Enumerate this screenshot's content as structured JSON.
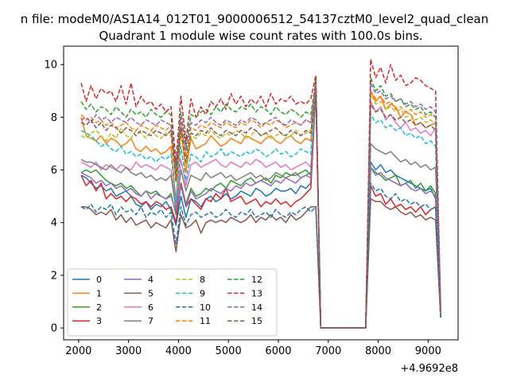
{
  "chart_data": {
    "type": "line",
    "suptitle": "n file: modeM0/AS1A14_012T01_9000006512_54137cztM0_level2_quad_clean",
    "title": "Quadrant 1 module wise count rates with 100.0s bins.",
    "xlabel": "",
    "ylabel": "",
    "x_offset_label": "+4.9692e8",
    "xlim": [
      1700,
      9600
    ],
    "ylim": [
      -0.45,
      10.7
    ],
    "xticks": [
      2000,
      3000,
      4000,
      5000,
      6000,
      7000,
      8000,
      9000
    ],
    "yticks": [
      0,
      2,
      4,
      6,
      8,
      10
    ],
    "x_start": 2050,
    "x_step": 100,
    "gap_start_index": 48,
    "gap_end_index": 57,
    "legend": {
      "placement": "lower-left",
      "columns": 4
    },
    "series": [
      {
        "name": "0",
        "color": "#1f77b4",
        "style": "solid",
        "pre": [
          5.8,
          5.7,
          5.5,
          5.3,
          5.4,
          5.2,
          5.3,
          5.0,
          5.1,
          5.2,
          5.0,
          4.7,
          4.6,
          4.8,
          4.5,
          4.7,
          4.6,
          4.8,
          4.5,
          3.9,
          5.0,
          4.2,
          4.9,
          4.8,
          4.6,
          4.9,
          5.0,
          4.8,
          4.9,
          5.1,
          4.9,
          5.0,
          5.2,
          5.1,
          5.0,
          5.3,
          5.2,
          5.0,
          5.1,
          5.3,
          5.2,
          5.2,
          5.3,
          5.1,
          5.4,
          5.3,
          5.5,
          9.3
        ],
        "post": [
          6.3,
          6.0,
          6.2,
          5.9,
          6.0,
          5.8,
          5.7,
          5.6,
          5.5,
          5.4,
          5.3,
          5.2,
          5.3,
          4.9,
          0.4
        ]
      },
      {
        "name": "1",
        "color": "#ff7f0e",
        "style": "solid",
        "pre": [
          8.0,
          7.3,
          7.2,
          7.1,
          7.3,
          7.0,
          7.2,
          7.1,
          6.9,
          7.0,
          7.2,
          6.8,
          6.7,
          6.9,
          6.7,
          6.8,
          6.6,
          6.7,
          6.9,
          4.8,
          7.5,
          5.9,
          7.2,
          6.8,
          6.9,
          7.0,
          7.3,
          7.1,
          6.9,
          7.0,
          7.2,
          7.1,
          7.0,
          7.3,
          7.2,
          7.1,
          7.0,
          7.2,
          7.3,
          7.1,
          7.0,
          7.2,
          7.3,
          7.1,
          7.0,
          7.2,
          7.1,
          9.5
        ],
        "post": [
          9.0,
          8.6,
          8.8,
          8.3,
          8.5,
          8.4,
          8.0,
          8.2,
          8.1,
          7.7,
          7.8,
          7.6,
          7.7,
          7.8,
          0.5
        ]
      },
      {
        "name": "2",
        "color": "#2ca02c",
        "style": "solid",
        "pre": [
          5.9,
          6.0,
          5.9,
          6.0,
          5.8,
          5.6,
          5.5,
          5.4,
          5.5,
          5.3,
          5.4,
          5.2,
          5.0,
          5.2,
          5.1,
          5.2,
          5.0,
          4.9,
          5.1,
          4.3,
          5.5,
          4.7,
          5.3,
          5.0,
          5.1,
          5.3,
          5.2,
          5.4,
          5.5,
          5.3,
          5.6,
          5.5,
          5.4,
          5.6,
          5.7,
          5.5,
          5.6,
          5.7,
          5.5,
          5.8,
          5.7,
          5.9,
          5.8,
          5.8,
          5.9,
          6.0,
          5.8,
          9.4
        ],
        "post": [
          6.1,
          5.9,
          5.8,
          5.6,
          5.7,
          5.8,
          5.4,
          5.5,
          5.6,
          5.3,
          5.5,
          5.2,
          5.4,
          5.1,
          0.5
        ]
      },
      {
        "name": "3",
        "color": "#d62728",
        "style": "solid",
        "pre": [
          5.8,
          5.4,
          5.6,
          5.2,
          5.5,
          4.9,
          5.1,
          4.9,
          5.0,
          4.8,
          5.0,
          4.9,
          4.7,
          4.8,
          4.6,
          4.8,
          4.7,
          4.5,
          4.6,
          4.0,
          5.5,
          4.6,
          4.9,
          4.7,
          4.5,
          4.9,
          4.8,
          5.1,
          4.9,
          5.3,
          4.8,
          4.9,
          5.0,
          4.7,
          4.8,
          4.9,
          4.6,
          4.8,
          4.7,
          4.9,
          4.7,
          4.8,
          4.6,
          4.8,
          4.9,
          5.1,
          5.3,
          9.0
        ],
        "post": [
          5.4,
          5.0,
          5.1,
          4.7,
          4.9,
          4.6,
          4.7,
          4.5,
          4.6,
          4.4,
          4.6,
          4.3,
          4.5,
          4.6,
          0.5
        ]
      },
      {
        "name": "4",
        "color": "#9467bd",
        "style": "solid",
        "pre": [
          5.9,
          5.8,
          5.7,
          5.5,
          5.6,
          5.4,
          5.5,
          5.3,
          5.4,
          5.2,
          5.3,
          5.1,
          5.0,
          5.2,
          4.9,
          5.1,
          5.0,
          4.9,
          5.0,
          4.4,
          5.4,
          4.6,
          5.2,
          4.9,
          5.0,
          5.1,
          5.3,
          5.2,
          5.1,
          5.3,
          5.2,
          5.4,
          5.3,
          5.5,
          5.4,
          5.5,
          5.6,
          5.5,
          5.4,
          5.6,
          5.5,
          5.7,
          5.6,
          5.5,
          5.7,
          5.8,
          5.7,
          9.4
        ],
        "post": [
          6.1,
          5.8,
          5.9,
          5.7,
          5.6,
          5.5,
          5.4,
          5.5,
          5.3,
          5.2,
          5.3,
          5.1,
          5.2,
          5.0,
          0.5
        ]
      },
      {
        "name": "5",
        "color": "#8c564b",
        "style": "solid",
        "pre": [
          4.6,
          4.6,
          4.5,
          4.3,
          4.4,
          4.3,
          4.5,
          4.1,
          4.3,
          4.0,
          4.2,
          3.9,
          4.0,
          4.1,
          3.8,
          4.0,
          3.9,
          3.8,
          4.1,
          2.9,
          4.3,
          3.8,
          3.9,
          4.1,
          3.6,
          4.0,
          4.1,
          4.0,
          4.1,
          4.0,
          4.2,
          4.1,
          4.0,
          4.1,
          4.3,
          4.0,
          4.2,
          4.1,
          4.3,
          4.1,
          4.2,
          4.0,
          4.3,
          4.1,
          4.2,
          4.4,
          4.6,
          4.6
        ],
        "post": [
          4.9,
          4.8,
          4.8,
          4.6,
          4.5,
          4.6,
          4.4,
          4.3,
          4.4,
          4.2,
          4.3,
          4.1,
          4.2,
          4.1,
          0.4
        ]
      },
      {
        "name": "6",
        "color": "#e377c2",
        "style": "solid",
        "pre": [
          6.3,
          6.2,
          6.1,
          6.3,
          6.0,
          6.2,
          6.1,
          6.0,
          6.2,
          6.1,
          6.0,
          6.3,
          6.1,
          6.2,
          6.1,
          6.0,
          6.2,
          6.1,
          6.0,
          4.7,
          6.4,
          5.4,
          6.2,
          6.3,
          6.1,
          6.2,
          6.3,
          6.4,
          6.2,
          6.1,
          6.3,
          6.2,
          6.1,
          6.3,
          6.2,
          6.4,
          6.3,
          6.1,
          6.2,
          6.3,
          6.1,
          6.2,
          6.0,
          6.1,
          6.2,
          6.3,
          6.1,
          8.9
        ],
        "post": [
          8.6,
          8.2,
          8.4,
          7.9,
          8.1,
          7.8,
          7.6,
          7.8,
          7.5,
          7.6,
          7.4,
          7.5,
          7.3,
          7.6,
          0.7
        ]
      },
      {
        "name": "7",
        "color": "#7f7f7f",
        "style": "solid",
        "pre": [
          6.4,
          6.3,
          6.3,
          6.2,
          6.1,
          6.0,
          6.2,
          6.0,
          5.9,
          6.1,
          5.9,
          5.8,
          5.9,
          5.7,
          5.8,
          5.6,
          5.7,
          5.6,
          5.8,
          4.5,
          6.0,
          5.2,
          5.8,
          5.7,
          5.6,
          5.9,
          5.7,
          5.8,
          5.9,
          5.7,
          5.8,
          5.6,
          5.7,
          5.8,
          5.9,
          5.7,
          5.8,
          5.6,
          5.7,
          5.9,
          5.8,
          5.7,
          5.8,
          5.9,
          5.7,
          5.8,
          5.9,
          9.0
        ],
        "post": [
          7.0,
          6.8,
          6.7,
          6.6,
          6.7,
          6.5,
          6.3,
          6.4,
          6.2,
          6.3,
          6.1,
          6.2,
          6.0,
          6.1,
          0.5
        ]
      },
      {
        "name": "8",
        "color": "#bcbd22",
        "style": "dashed",
        "pre": [
          7.3,
          7.2,
          7.4,
          7.5,
          7.3,
          7.1,
          7.4,
          7.2,
          7.6,
          7.3,
          7.2,
          7.5,
          7.4,
          7.2,
          7.5,
          7.3,
          7.2,
          7.4,
          7.3,
          5.5,
          7.4,
          6.2,
          7.3,
          7.2,
          7.4,
          7.3,
          7.5,
          7.3,
          7.2,
          7.4,
          7.3,
          7.5,
          7.4,
          7.2,
          7.3,
          7.5,
          7.3,
          7.4,
          7.2,
          7.3,
          7.4,
          7.2,
          7.3,
          7.5,
          7.3,
          7.4,
          7.5,
          9.1
        ],
        "post": [
          8.9,
          8.5,
          8.6,
          8.3,
          8.4,
          8.2,
          8.3,
          8.0,
          8.1,
          7.9,
          8.0,
          7.8,
          7.9,
          7.7,
          0.7
        ]
      },
      {
        "name": "9",
        "color": "#17becf",
        "style": "dashed",
        "pre": [
          7.5,
          7.4,
          7.3,
          7.1,
          6.9,
          7.0,
          6.8,
          6.7,
          6.9,
          6.6,
          6.7,
          6.5,
          6.6,
          6.4,
          6.5,
          6.3,
          6.5,
          6.4,
          6.6,
          4.8,
          6.9,
          5.6,
          6.6,
          6.5,
          6.3,
          6.7,
          6.5,
          6.6,
          6.8,
          6.5,
          6.7,
          6.6,
          6.5,
          6.7,
          6.6,
          6.8,
          6.7,
          6.5,
          6.6,
          6.8,
          6.6,
          6.7,
          6.5,
          6.6,
          6.8,
          6.7,
          6.6,
          9.3
        ],
        "post": [
          8.1,
          7.8,
          7.9,
          7.6,
          7.7,
          7.5,
          7.6,
          7.3,
          7.4,
          7.2,
          7.3,
          7.0,
          7.1,
          6.9,
          0.6
        ]
      },
      {
        "name": "10",
        "color": "#1f77b4",
        "style": "dashed",
        "pre": [
          4.6,
          4.5,
          4.7,
          4.4,
          4.6,
          4.5,
          4.7,
          4.3,
          4.6,
          4.4,
          4.5,
          4.3,
          4.6,
          4.2,
          4.4,
          4.3,
          4.5,
          4.2,
          4.4,
          3.2,
          4.6,
          3.9,
          4.3,
          4.4,
          4.2,
          4.3,
          4.4,
          4.2,
          4.3,
          4.5,
          4.3,
          4.2,
          4.4,
          4.3,
          4.5,
          4.2,
          4.3,
          4.4,
          4.2,
          4.5,
          4.3,
          4.2,
          4.4,
          4.3,
          4.5,
          4.6,
          4.4,
          4.6
        ],
        "post": [
          5.5,
          5.2,
          5.3,
          5.0,
          4.9,
          5.1,
          4.8,
          4.9,
          4.7,
          4.8,
          4.6,
          4.7,
          4.5,
          4.6,
          0.4
        ]
      },
      {
        "name": "11",
        "color": "#ff7f0e",
        "style": "dashed",
        "pre": [
          8.1,
          7.9,
          8.0,
          7.8,
          7.9,
          7.7,
          7.8,
          7.6,
          7.7,
          7.8,
          7.6,
          7.5,
          7.7,
          7.6,
          7.5,
          7.7,
          7.6,
          7.5,
          7.7,
          5.7,
          7.8,
          6.5,
          7.6,
          7.5,
          7.7,
          7.6,
          7.8,
          7.7,
          7.6,
          7.8,
          7.7,
          7.6,
          7.8,
          7.7,
          7.9,
          7.8,
          7.6,
          7.8,
          7.7,
          7.9,
          7.8,
          7.6,
          7.7,
          7.8,
          7.7,
          7.9,
          7.8,
          9.2
        ],
        "post": [
          9.0,
          8.7,
          8.8,
          8.5,
          8.6,
          8.3,
          8.4,
          8.2,
          8.3,
          8.1,
          8.2,
          8.0,
          8.1,
          8.0,
          0.7
        ]
      },
      {
        "name": "12",
        "color": "#2ca02c",
        "style": "dashed",
        "pre": [
          8.6,
          8.3,
          8.5,
          8.2,
          8.4,
          8.3,
          8.1,
          8.4,
          8.2,
          8.0,
          8.3,
          8.1,
          8.2,
          8.0,
          8.3,
          8.1,
          8.0,
          8.2,
          8.1,
          6.0,
          8.2,
          6.9,
          8.1,
          8.0,
          8.2,
          8.3,
          8.1,
          8.4,
          8.2,
          8.5,
          8.3,
          8.2,
          8.4,
          8.3,
          8.5,
          8.2,
          8.4,
          8.3,
          8.1,
          8.4,
          8.2,
          8.1,
          8.3,
          8.2,
          8.0,
          8.2,
          8.1,
          9.4
        ],
        "post": [
          9.5,
          9.0,
          9.2,
          8.8,
          8.9,
          8.6,
          8.7,
          8.4,
          8.5,
          8.3,
          8.4,
          8.1,
          8.2,
          8.0,
          0.8
        ]
      },
      {
        "name": "13",
        "color": "#d62728",
        "style": "dashed",
        "pre": [
          9.3,
          8.6,
          9.2,
          8.7,
          9.1,
          8.9,
          9.0,
          8.6,
          9.2,
          8.5,
          9.3,
          8.4,
          8.8,
          8.5,
          8.6,
          8.3,
          8.5,
          8.2,
          8.4,
          6.3,
          8.8,
          7.1,
          8.7,
          8.0,
          8.4,
          8.1,
          8.6,
          8.4,
          8.7,
          8.3,
          8.9,
          8.5,
          8.8,
          8.4,
          8.7,
          8.5,
          8.8,
          8.4,
          8.9,
          8.5,
          8.7,
          8.6,
          8.8,
          8.5,
          8.6,
          8.5,
          8.7,
          9.6
        ],
        "post": [
          10.2,
          9.5,
          9.9,
          9.3,
          10.0,
          9.4,
          9.6,
          9.2,
          9.3,
          9.5,
          9.4,
          9.2,
          9.1,
          9.0,
          0.9
        ]
      },
      {
        "name": "14",
        "color": "#9467bd",
        "style": "dashed",
        "pre": [
          7.9,
          8.0,
          7.8,
          8.1,
          7.9,
          8.0,
          7.8,
          8.0,
          7.9,
          7.8,
          8.0,
          7.8,
          7.7,
          7.9,
          7.8,
          7.7,
          7.9,
          7.8,
          7.7,
          5.9,
          8.0,
          6.7,
          7.8,
          7.7,
          7.9,
          7.8,
          8.0,
          7.8,
          7.7,
          7.9,
          7.8,
          7.7,
          7.9,
          7.8,
          8.0,
          7.9,
          7.7,
          7.8,
          7.9,
          8.0,
          7.8,
          7.7,
          7.9,
          7.8,
          7.7,
          7.9,
          7.8,
          9.3
        ],
        "post": [
          9.3,
          8.9,
          9.0,
          8.7,
          8.8,
          8.6,
          8.7,
          8.5,
          8.6,
          8.4,
          8.5,
          8.3,
          8.4,
          8.2,
          0.7
        ]
      },
      {
        "name": "15",
        "color": "#8c564b",
        "style": "dashed",
        "pre": [
          7.8,
          7.7,
          7.9,
          7.6,
          7.8,
          7.5,
          7.7,
          7.6,
          7.4,
          7.6,
          7.5,
          7.3,
          7.5,
          7.4,
          7.3,
          7.5,
          7.4,
          7.3,
          7.5,
          5.6,
          7.6,
          6.3,
          7.4,
          7.3,
          7.5,
          7.4,
          7.6,
          7.4,
          7.3,
          7.5,
          7.4,
          7.3,
          7.5,
          7.4,
          7.6,
          7.5,
          7.3,
          7.4,
          7.5,
          7.6,
          7.4,
          7.3,
          7.5,
          7.4,
          7.3,
          7.5,
          7.4,
          8.9
        ],
        "post": [
          8.5,
          8.2,
          8.3,
          8.0,
          8.1,
          7.9,
          8.0,
          7.8,
          7.9,
          7.7,
          7.8,
          7.6,
          7.7,
          7.5,
          0.6
        ]
      }
    ]
  }
}
